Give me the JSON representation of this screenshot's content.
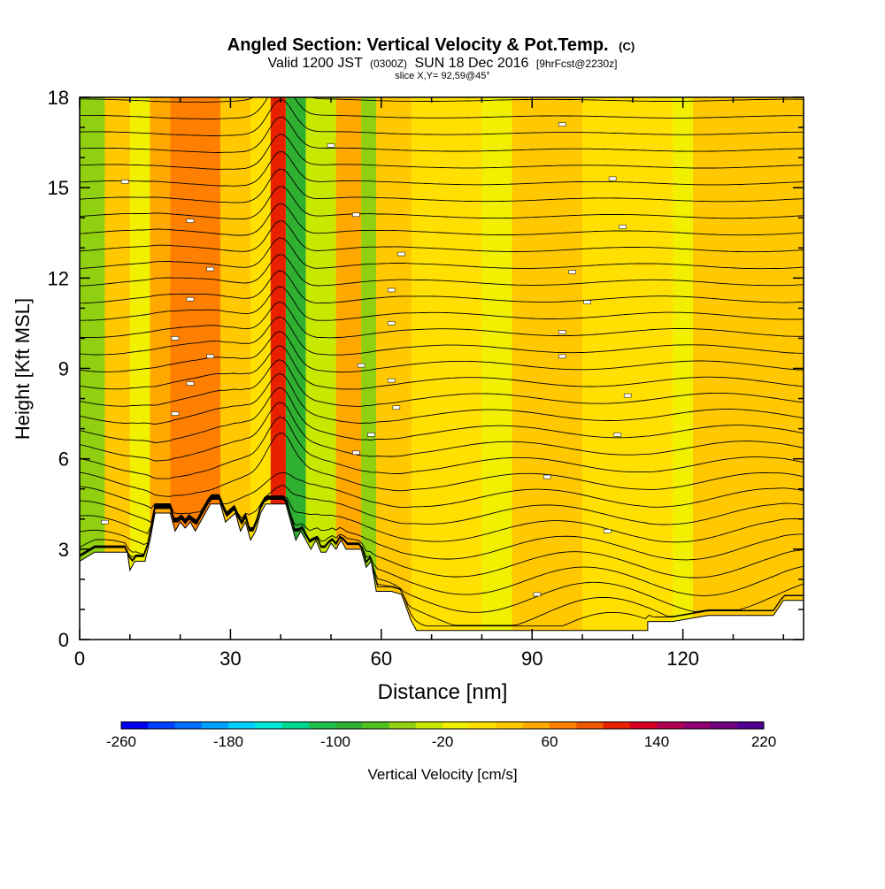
{
  "chart_data": {
    "type": "heatmap",
    "title": "Angled Section: Vertical Velocity & Pot.Temp.",
    "title_suffix": "(C)",
    "subtitle_parts": [
      "Valid 1200 JST",
      "(0300Z)",
      "SUN 18 Dec 2016",
      "[9hrFcst@2230z]"
    ],
    "slice_label": "slice X,Y= 92,59@45°",
    "xlabel": "Distance [nm]",
    "ylabel": "Height [Kft MSL]",
    "xlim": [
      0,
      144
    ],
    "ylim": [
      0,
      18
    ],
    "xticks": [
      {
        "value": 0,
        "label": "0"
      },
      {
        "value": 30,
        "label": "30"
      },
      {
        "value": 60,
        "label": "60"
      },
      {
        "value": 90,
        "label": "90"
      },
      {
        "value": 120,
        "label": "120"
      }
    ],
    "yticks": [
      {
        "value": 0,
        "label": "0"
      },
      {
        "value": 3,
        "label": "3"
      },
      {
        "value": 6,
        "label": "6"
      },
      {
        "value": 9,
        "label": "9"
      },
      {
        "value": 12,
        "label": "12"
      },
      {
        "value": 15,
        "label": "15"
      },
      {
        "value": 18,
        "label": "18"
      }
    ],
    "grid": false,
    "colorbar": {
      "label": "Vertical Velocity [cm/s]",
      "min": -260,
      "max": 220,
      "step": 20,
      "tick_labels": [
        "-260",
        "-180",
        "-100",
        "-20",
        "60",
        "140",
        "220"
      ],
      "colors": [
        "#0000f0",
        "#0040ff",
        "#0070ff",
        "#00a0ff",
        "#00d0ff",
        "#00e8d8",
        "#00d890",
        "#20c050",
        "#30b030",
        "#50c020",
        "#90d010",
        "#c8e800",
        "#f0f000",
        "#ffe000",
        "#ffc800",
        "#ffa800",
        "#ff8000",
        "#f05800",
        "#e82000",
        "#d80020",
        "#b00050",
        "#900070",
        "#700080",
        "#500090"
      ]
    },
    "velocity_bands": [
      {
        "x_range": [
          0,
          5
        ],
        "value": -60
      },
      {
        "x_range": [
          5,
          10
        ],
        "value": 20
      },
      {
        "x_range": [
          10,
          14
        ],
        "value": -20
      },
      {
        "x_range": [
          14,
          18
        ],
        "value": 40
      },
      {
        "x_range": [
          18,
          28
        ],
        "value": 60
      },
      {
        "x_range": [
          28,
          34
        ],
        "value": 20
      },
      {
        "x_range": [
          34,
          38
        ],
        "value": 0
      },
      {
        "x_range": [
          38,
          41
        ],
        "value": 100
      },
      {
        "x_range": [
          41,
          45
        ],
        "value": -100
      },
      {
        "x_range": [
          45,
          51
        ],
        "value": -40
      },
      {
        "x_range": [
          51,
          56
        ],
        "value": 40
      },
      {
        "x_range": [
          56,
          59
        ],
        "value": -60
      },
      {
        "x_range": [
          59,
          66
        ],
        "value": 20
      },
      {
        "x_range": [
          66,
          80
        ],
        "value": 0
      },
      {
        "x_range": [
          80,
          86
        ],
        "value": -20
      },
      {
        "x_range": [
          86,
          100
        ],
        "value": 20
      },
      {
        "x_range": [
          100,
          118
        ],
        "value": 0
      },
      {
        "x_range": [
          118,
          122
        ],
        "value": -20
      },
      {
        "x_range": [
          122,
          144
        ],
        "value": 20
      }
    ],
    "terrain": [
      [
        0,
        2.6
      ],
      [
        3,
        2.9
      ],
      [
        9.5,
        2.9
      ],
      [
        10,
        2.3
      ],
      [
        11,
        2.6
      ],
      [
        13,
        2.6
      ],
      [
        14,
        3.3
      ],
      [
        15,
        4.2
      ],
      [
        18,
        4.2
      ],
      [
        19,
        3.6
      ],
      [
        20,
        3.9
      ],
      [
        21,
        3.7
      ],
      [
        22,
        3.9
      ],
      [
        23,
        3.6
      ],
      [
        25,
        4.2
      ],
      [
        26,
        4.5
      ],
      [
        28,
        4.5
      ],
      [
        29,
        3.9
      ],
      [
        31,
        4.2
      ],
      [
        32,
        3.6
      ],
      [
        33,
        3.9
      ],
      [
        34,
        3.3
      ],
      [
        35,
        3.6
      ],
      [
        36,
        4.2
      ],
      [
        37,
        4.5
      ],
      [
        41,
        4.5
      ],
      [
        43,
        3.3
      ],
      [
        44,
        3.6
      ],
      [
        45,
        3.3
      ],
      [
        46,
        3.0
      ],
      [
        47,
        3.3
      ],
      [
        48,
        2.9
      ],
      [
        49,
        2.9
      ],
      [
        50,
        3.2
      ],
      [
        51,
        3.0
      ],
      [
        52,
        3.3
      ],
      [
        53,
        3.0
      ],
      [
        56,
        3.0
      ],
      [
        57,
        2.4
      ],
      [
        58,
        2.6
      ],
      [
        59,
        1.6
      ],
      [
        62,
        1.6
      ],
      [
        64,
        1.5
      ],
      [
        66,
        0.6
      ],
      [
        67,
        0.3
      ],
      [
        81,
        0.3
      ],
      [
        86,
        0.3
      ],
      [
        113,
        0.3
      ],
      [
        113,
        0.6
      ],
      [
        118,
        0.6
      ],
      [
        125,
        0.8
      ],
      [
        138,
        0.8
      ],
      [
        140,
        1.3
      ],
      [
        144,
        1.3
      ]
    ],
    "contour_labels": [
      "38",
      "40",
      "42",
      "44",
      "46",
      "48",
      "50",
      "52",
      "54",
      "56",
      "58",
      "60",
      "62",
      "64",
      "66",
      "68",
      "70"
    ]
  }
}
